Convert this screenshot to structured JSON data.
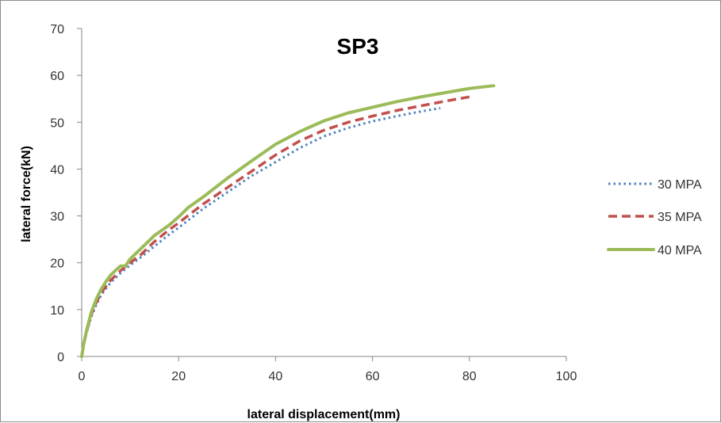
{
  "chart_data": {
    "type": "line",
    "title": "SP3",
    "xlabel": "lateral displacement(mm)",
    "ylabel": "lateral force(kN)",
    "xlim": [
      0,
      100
    ],
    "ylim": [
      0,
      70
    ],
    "xticks": [
      0,
      20,
      40,
      60,
      80,
      100
    ],
    "yticks": [
      0,
      10,
      20,
      30,
      40,
      50,
      60,
      70
    ],
    "grid": false,
    "legend_position": "right",
    "series": [
      {
        "name": "30 MPA",
        "color": "#4f81bd",
        "dash": "dotted",
        "x": [
          0,
          0.5,
          1,
          2,
          3,
          4,
          5,
          6,
          7,
          8,
          10,
          12,
          15,
          18,
          20,
          25,
          30,
          35,
          40,
          45,
          50,
          55,
          60,
          65,
          70,
          74
        ],
        "y": [
          0,
          3,
          5,
          8.5,
          11,
          13,
          14.5,
          15.8,
          16.8,
          17.8,
          19.5,
          21,
          23.5,
          26,
          27.5,
          31.5,
          35,
          38.5,
          41.5,
          44.5,
          47,
          48.8,
          50.2,
          51.3,
          52.3,
          53
        ]
      },
      {
        "name": "35 MPA",
        "color": "#c0504d",
        "dash": "dashed",
        "x": [
          0,
          0.5,
          1,
          2,
          3,
          4,
          5,
          6,
          7,
          8,
          10,
          12,
          15,
          18,
          20,
          25,
          30,
          35,
          40,
          45,
          50,
          55,
          60,
          65,
          70,
          75,
          80
        ],
        "y": [
          0,
          3,
          5.2,
          9,
          11.5,
          13.5,
          15,
          16.3,
          17.3,
          18.3,
          20,
          21.5,
          24.5,
          27,
          28.5,
          32.5,
          36,
          39.5,
          43,
          46,
          48.3,
          50,
          51.3,
          52.5,
          53.5,
          54.5,
          55.4
        ]
      },
      {
        "name": "40 MPA",
        "color": "#9bbb59",
        "dash": "solid",
        "x": [
          0,
          0.5,
          1,
          2,
          3,
          4,
          5,
          6,
          7,
          8,
          9,
          10,
          12,
          15,
          18,
          20,
          22,
          25,
          30,
          35,
          40,
          45,
          50,
          55,
          60,
          65,
          70,
          75,
          80,
          85
        ],
        "y": [
          0,
          3.2,
          5.5,
          9.5,
          12.2,
          14.3,
          16,
          17.4,
          18.4,
          19.3,
          19.3,
          20.8,
          22.8,
          25.8,
          28,
          29.8,
          31.8,
          34,
          38,
          41.7,
          45.3,
          48,
          50.3,
          52,
          53.2,
          54.4,
          55.4,
          56.3,
          57.2,
          57.8
        ]
      }
    ]
  }
}
